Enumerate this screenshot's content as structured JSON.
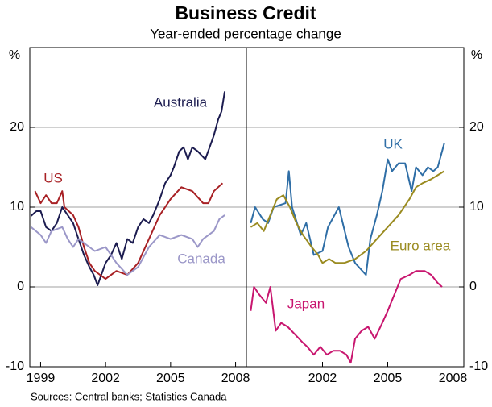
{
  "title": "Business Credit",
  "subtitle": "Year-ended percentage change",
  "source": "Sources: Central banks; Statistics Canada",
  "chart_data": [
    {
      "type": "line",
      "ylabel": "%",
      "xlim": [
        1998.5,
        2008.5
      ],
      "ylim": [
        -10,
        30
      ],
      "xticks": [
        1999,
        2002,
        2005,
        2008
      ],
      "yticks": [
        -10,
        0,
        10,
        20
      ],
      "grid": true,
      "tick_side": "left",
      "series": [
        {
          "name": "Australia",
          "color": "#1c1c50",
          "x": [
            1998.56,
            1998.8,
            1999,
            1999.25,
            1999.5,
            1999.75,
            2000,
            2000.25,
            2000.5,
            2000.75,
            2001,
            2001.25,
            2001.45,
            2001.63,
            2001.8,
            2002,
            2002.25,
            2002.5,
            2002.75,
            2003,
            2003.25,
            2003.5,
            2003.75,
            2004,
            2004.2,
            2004.5,
            2004.75,
            2005,
            2005.15,
            2005.4,
            2005.6,
            2005.8,
            2006,
            2006.25,
            2006.6,
            2006.8,
            2007,
            2007.2,
            2007.35,
            2007.5
          ],
          "values": [
            8.9,
            9.5,
            9.5,
            7.5,
            7,
            8,
            10,
            9,
            8,
            6,
            4,
            2.5,
            1.5,
            0.2,
            1.5,
            3,
            4,
            5.5,
            3.5,
            6,
            5.5,
            7.5,
            8.5,
            8,
            9,
            11,
            13,
            14,
            15,
            17,
            17.5,
            16,
            17.5,
            17,
            16,
            17.5,
            19,
            21,
            22,
            24.5
          ]
        },
        {
          "name": "US",
          "color": "#a82125",
          "x": [
            1998.74,
            1999,
            1999.25,
            1999.5,
            1999.75,
            2000,
            2000.1,
            2000.5,
            2000.75,
            2001,
            2001.25,
            2001.5,
            2002,
            2002.5,
            2003,
            2003.5,
            2004,
            2004.5,
            2005,
            2005.5,
            2006,
            2006.5,
            2006.75,
            2007,
            2007.4
          ],
          "values": [
            12,
            10.5,
            11.5,
            10.5,
            10.5,
            12,
            10,
            9,
            7.5,
            5,
            3,
            2,
            1,
            2,
            1.5,
            3,
            6,
            9,
            11,
            12.5,
            12,
            10.5,
            10.5,
            12,
            13
          ]
        },
        {
          "name": "Canada",
          "color": "#9b97c8",
          "x": [
            1998.56,
            1999,
            1999.25,
            1999.5,
            2000,
            2000.25,
            2000.5,
            2000.75,
            2001,
            2001.5,
            2002,
            2002.25,
            2002.5,
            2003,
            2003.5,
            2004,
            2004.5,
            2005,
            2005.5,
            2006,
            2006.25,
            2006.5,
            2007,
            2007.25,
            2007.5
          ],
          "values": [
            7.5,
            6.5,
            5.5,
            7,
            7.5,
            6,
            5,
            6,
            5.5,
            4.5,
            5,
            4,
            3,
            1.5,
            2.5,
            5,
            6.5,
            6,
            6.5,
            6,
            5,
            6,
            7,
            8.5,
            9
          ]
        }
      ]
    },
    {
      "type": "line",
      "ylabel": "%",
      "xlim": [
        1998.5,
        2008.5
      ],
      "ylim": [
        -10,
        30
      ],
      "xticks": [
        2002,
        2005,
        2008
      ],
      "yticks": [
        -10,
        0,
        10,
        20
      ],
      "grid": true,
      "tick_side": "right",
      "series": [
        {
          "name": "UK",
          "color": "#2f6ea6",
          "x": [
            1998.7,
            1998.9,
            1999.25,
            1999.5,
            1999.75,
            2000.3,
            2000.45,
            2000.6,
            2001,
            2001.25,
            2001.6,
            2002,
            2002.25,
            2002.75,
            2003.2,
            2003.5,
            2004,
            2004.2,
            2004.5,
            2004.75,
            2005,
            2005.2,
            2005.5,
            2005.8,
            2006.1,
            2006.3,
            2006.6,
            2006.85,
            2007.1,
            2007.3,
            2007.6
          ],
          "values": [
            8,
            10,
            8.5,
            8,
            10,
            10.5,
            14.5,
            10,
            6.5,
            8,
            4,
            4.5,
            7.5,
            10,
            5,
            3,
            1.5,
            6,
            9,
            12,
            16,
            14.5,
            15.5,
            15.5,
            12,
            15,
            14,
            15,
            14.5,
            15,
            18
          ]
        },
        {
          "name": "Euro area",
          "color": "#9a8b20",
          "x": [
            1998.7,
            1999,
            1999.3,
            1999.6,
            1999.9,
            2000.2,
            2000.5,
            2000.8,
            2001.1,
            2001.5,
            2001.8,
            2002,
            2002.3,
            2002.6,
            2003,
            2003.5,
            2004,
            2004.5,
            2005,
            2005.5,
            2006,
            2006.3,
            2006.6,
            2007,
            2007.3,
            2007.6
          ],
          "values": [
            7.5,
            8,
            7,
            9,
            11,
            11.5,
            10,
            8,
            6.5,
            5,
            4,
            3,
            3.5,
            3,
            3,
            3.5,
            4.5,
            6,
            7.5,
            9,
            11,
            12.5,
            13,
            13.5,
            14,
            14.5
          ]
        },
        {
          "name": "Japan",
          "color": "#c8166f",
          "x": [
            1998.7,
            1998.85,
            1999.1,
            1999.4,
            1999.6,
            1999.85,
            2000.1,
            2000.4,
            2000.75,
            2001.1,
            2001.3,
            2001.6,
            2001.9,
            2002.2,
            2002.5,
            2002.8,
            2003.1,
            2003.3,
            2003.5,
            2003.8,
            2004.1,
            2004.4,
            2004.75,
            2005,
            2005.3,
            2005.6,
            2006,
            2006.3,
            2006.7,
            2007,
            2007.3,
            2007.5
          ],
          "values": [
            -3,
            0,
            -1,
            -2,
            0,
            -5.5,
            -4.5,
            -5,
            -6,
            -7,
            -7.5,
            -8.5,
            -7.5,
            -8.5,
            -8,
            -8,
            -8.5,
            -9.5,
            -6.5,
            -5.5,
            -5,
            -6.5,
            -4.5,
            -3,
            -1,
            1,
            1.5,
            2,
            2,
            1.5,
            0.5,
            0
          ]
        }
      ]
    }
  ]
}
